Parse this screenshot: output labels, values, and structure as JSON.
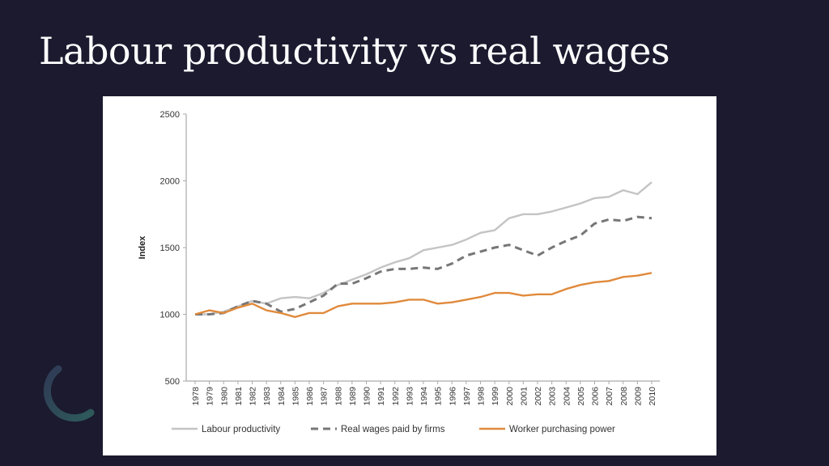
{
  "slide": {
    "title": "Labour productivity vs real wages"
  },
  "chart_data": {
    "type": "line",
    "title": "",
    "xlabel": "",
    "ylabel": "Index",
    "ylim": [
      500,
      2500
    ],
    "yticks": [
      500,
      1000,
      1500,
      2000,
      2500
    ],
    "grid": false,
    "legend": "bottom",
    "x": [
      "1978",
      "1979",
      "1980",
      "1981",
      "1982",
      "1983",
      "1984",
      "1985",
      "1986",
      "1987",
      "1988",
      "1989",
      "1990",
      "1991",
      "1992",
      "1993",
      "1994",
      "1995",
      "1996",
      "1997",
      "1998",
      "1999",
      "2000",
      "2001",
      "2002",
      "2003",
      "2004",
      "2005",
      "2006",
      "2007",
      "2008",
      "2009",
      "2010"
    ],
    "series": [
      {
        "name": "Labour productivity",
        "color": "#c4c4c4",
        "style": "solid",
        "values": [
          1000,
          1000,
          1020,
          1060,
          1100,
          1080,
          1120,
          1130,
          1120,
          1160,
          1220,
          1260,
          1300,
          1350,
          1390,
          1420,
          1480,
          1500,
          1520,
          1560,
          1610,
          1630,
          1720,
          1750,
          1750,
          1770,
          1800,
          1830,
          1870,
          1880,
          1930,
          1900,
          1990
        ]
      },
      {
        "name": "Real wages paid by firms",
        "color": "#777777",
        "style": "dashed",
        "values": [
          1000,
          1000,
          1010,
          1060,
          1100,
          1080,
          1020,
          1040,
          1090,
          1140,
          1230,
          1230,
          1270,
          1320,
          1340,
          1340,
          1350,
          1340,
          1380,
          1440,
          1470,
          1500,
          1520,
          1480,
          1440,
          1500,
          1550,
          1590,
          1680,
          1710,
          1700,
          1730,
          1720
        ]
      },
      {
        "name": "Worker purchasing power",
        "color": "#e08a3c",
        "style": "solid",
        "values": [
          1000,
          1030,
          1010,
          1050,
          1080,
          1030,
          1010,
          980,
          1010,
          1010,
          1060,
          1080,
          1080,
          1080,
          1090,
          1110,
          1110,
          1080,
          1090,
          1110,
          1130,
          1160,
          1160,
          1140,
          1150,
          1150,
          1190,
          1220,
          1240,
          1250,
          1280,
          1290,
          1310
        ]
      }
    ]
  }
}
